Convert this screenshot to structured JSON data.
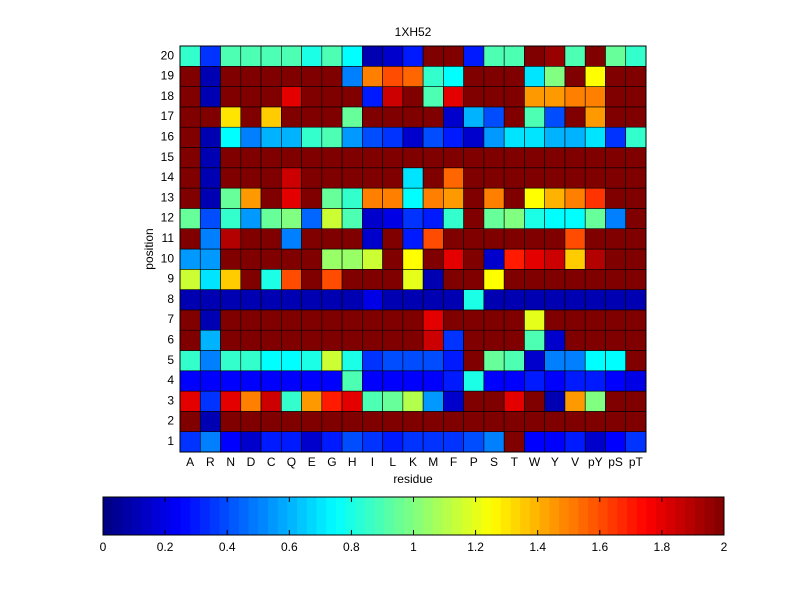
{
  "chart_data": {
    "type": "heatmap",
    "title": "1XH52",
    "xlabel": "residue",
    "ylabel": "position",
    "x": [
      "A",
      "R",
      "N",
      "D",
      "C",
      "Q",
      "E",
      "G",
      "H",
      "I",
      "L",
      "K",
      "M",
      "F",
      "P",
      "S",
      "T",
      "W",
      "Y",
      "V",
      "pY",
      "pS",
      "pT"
    ],
    "y": [
      1,
      2,
      3,
      4,
      5,
      6,
      7,
      8,
      9,
      10,
      11,
      12,
      13,
      14,
      15,
      16,
      17,
      18,
      19,
      20
    ],
    "values": [
      [
        0.35,
        0.5,
        0.25,
        0.15,
        0.3,
        0.3,
        0.15,
        0.3,
        0.4,
        0.35,
        0.3,
        0.35,
        0.35,
        0.35,
        0.4,
        0.5,
        2,
        0.25,
        0.25,
        0.3,
        0.15,
        0.25,
        0.35
      ],
      [
        2,
        0.1,
        2,
        2,
        2,
        2,
        2,
        2,
        2,
        2,
        2,
        2,
        2,
        2,
        2,
        2,
        2,
        2,
        2,
        2,
        2,
        2,
        2
      ],
      [
        1.8,
        0.35,
        1.8,
        1.5,
        1.85,
        0.85,
        1.45,
        1.7,
        1.8,
        0.9,
        0.95,
        1.1,
        0.55,
        0.15,
        2,
        2,
        1.8,
        2,
        0.1,
        1.45,
        1,
        2,
        2
      ],
      [
        0.25,
        0.25,
        0.25,
        0.25,
        0.25,
        0.25,
        0.25,
        0.25,
        0.9,
        0.25,
        0.25,
        0.25,
        0.25,
        0.3,
        0.8,
        0.25,
        0.25,
        0.3,
        0.25,
        0.3,
        0.3,
        0.25,
        0.2
      ],
      [
        0.85,
        0.5,
        0.85,
        0.85,
        0.75,
        0.75,
        0.8,
        1.15,
        0.8,
        0.35,
        0.4,
        0.4,
        0.4,
        0.3,
        2,
        0.95,
        0.9,
        0.15,
        0.5,
        0.5,
        0.75,
        0.75,
        2
      ],
      [
        2,
        0.6,
        2,
        2,
        2,
        2,
        2,
        2,
        2,
        2,
        2,
        2,
        1.85,
        0.35,
        2,
        2,
        2,
        0.9,
        0.15,
        2,
        2,
        2,
        2
      ],
      [
        2,
        0.1,
        2,
        2,
        2,
        2,
        2,
        2,
        2,
        2,
        2,
        2,
        1.8,
        2,
        2,
        2,
        2,
        1.2,
        2,
        2,
        2,
        2,
        2
      ],
      [
        0.1,
        0.1,
        0.1,
        0.1,
        0.1,
        0.1,
        0.1,
        0.1,
        0.1,
        0.2,
        0.1,
        0.1,
        0.1,
        0.1,
        0.8,
        0.1,
        0.1,
        0.1,
        0.1,
        0.1,
        0.1,
        0.1,
        0.1
      ],
      [
        1.15,
        0.7,
        1.35,
        2,
        0.8,
        1.6,
        2,
        1.6,
        2,
        2,
        2,
        1.2,
        0.1,
        2,
        2,
        1.25,
        2,
        2,
        2,
        2,
        2,
        2,
        2
      ],
      [
        0.55,
        0.55,
        2,
        2,
        2,
        2,
        2,
        1.05,
        1.05,
        1.15,
        2,
        1.25,
        2,
        1.8,
        2,
        0.15,
        1.7,
        1.8,
        1.85,
        1.35,
        1.9,
        2,
        2
      ],
      [
        2,
        0.5,
        1.9,
        2,
        2,
        0.5,
        2,
        2,
        2,
        0.15,
        2,
        0.3,
        1.6,
        2,
        2,
        2,
        2,
        2,
        2,
        1.6,
        2,
        2,
        2
      ],
      [
        0.95,
        0.4,
        0.85,
        0.55,
        0.95,
        1,
        0.45,
        1.15,
        0.9,
        0.15,
        0.2,
        0.35,
        0.3,
        0.85,
        2,
        0.95,
        1,
        0.8,
        0.75,
        0.75,
        0.95,
        0.5,
        2
      ],
      [
        2,
        0.1,
        0.95,
        1.45,
        2,
        1.8,
        2,
        0.95,
        0.85,
        1.5,
        1.5,
        0.75,
        1.5,
        1.45,
        2,
        1.5,
        2,
        1.25,
        1.4,
        1.5,
        1.65,
        2,
        2
      ],
      [
        2,
        0.1,
        2,
        2,
        2,
        1.85,
        2,
        2,
        2,
        2,
        2,
        0.7,
        2,
        1.55,
        2,
        2,
        2,
        2,
        2,
        2,
        2,
        2,
        2
      ],
      [
        2,
        0.1,
        2,
        2,
        2,
        2,
        2,
        2,
        2,
        2,
        2,
        2,
        2,
        2,
        2,
        2,
        2,
        2,
        2,
        2,
        2,
        2,
        2
      ],
      [
        2,
        0.1,
        0.75,
        0.5,
        0.6,
        0.6,
        0.85,
        0.9,
        0.55,
        0.4,
        0.35,
        0.15,
        0.4,
        0.3,
        0.15,
        0.55,
        0.7,
        0.7,
        0.6,
        0.6,
        0.7,
        0.35,
        0.85
      ],
      [
        2,
        2,
        1.3,
        2,
        1.35,
        2,
        2,
        2,
        0.95,
        2,
        2,
        2,
        2,
        0.15,
        0.6,
        0.4,
        2,
        0.9,
        0.4,
        2,
        1.45,
        2,
        2
      ],
      [
        2,
        0.1,
        2,
        2,
        2,
        1.8,
        2,
        2,
        2,
        0.3,
        1.85,
        2,
        0.9,
        1.8,
        2,
        2,
        2,
        1.45,
        1.45,
        1.5,
        1.5,
        2,
        2
      ],
      [
        2,
        0.1,
        2,
        2,
        2,
        2,
        2,
        2,
        0.5,
        1.5,
        1.6,
        1.55,
        0.85,
        0.75,
        2,
        2,
        2,
        0.7,
        1,
        2,
        1.25,
        2,
        2
      ],
      [
        0.85,
        0.35,
        0.9,
        0.9,
        0.9,
        0.9,
        0.8,
        0.9,
        0.75,
        0.1,
        0.15,
        0.3,
        2,
        2,
        0.3,
        0.9,
        0.9,
        2,
        1.95,
        0.9,
        2,
        0.95,
        0.85
      ]
    ],
    "colormap": "jet",
    "clim": [
      0,
      2
    ],
    "cticks": [
      0,
      0.2,
      0.4,
      0.6,
      0.8,
      1,
      1.2,
      1.4,
      1.6,
      1.8,
      2
    ]
  }
}
